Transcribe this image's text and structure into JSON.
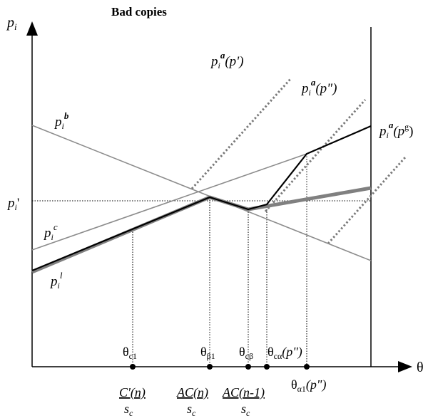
{
  "title": "Bad copies",
  "y_axis": {
    "base": "p",
    "sub": "i"
  },
  "x_axis": {
    "label": "θ"
  },
  "curve_labels": {
    "pa_prime": {
      "base": "p",
      "sub": "i",
      "sup": "a",
      "arg": "(p')"
    },
    "pa_double": {
      "base": "p",
      "sub": "i",
      "sup": "a",
      "arg": "(p\")"
    },
    "pa_g": {
      "base": "p",
      "sub": "i",
      "sup": "a",
      "arg_open": "(p",
      "arg_sup": "g",
      "arg_close": ")"
    },
    "pb": {
      "base": "p",
      "sub": "i",
      "sup": "b"
    },
    "pc": {
      "base": "p",
      "sub": "i",
      "sup": "c"
    },
    "pl": {
      "base": "p",
      "sub": "i",
      "sup": "l"
    },
    "p_prime": {
      "base": "p",
      "sub": "i",
      "prime": "'"
    }
  },
  "x_markers": [
    {
      "name": "theta-c1",
      "base": "θ",
      "sub": "c1"
    },
    {
      "name": "theta-beta1",
      "base": "θ",
      "sub": "β1"
    },
    {
      "name": "theta-cbeta",
      "base": "θ",
      "sub": "cβ"
    },
    {
      "name": "theta-calpha",
      "base": "θ",
      "sub": "cα",
      "arg": "(p\")"
    },
    {
      "name": "theta-alpha1",
      "base": "θ",
      "sub": "α1",
      "arg": "(p\")"
    }
  ],
  "fractions": [
    {
      "name": "c-prime-n",
      "num": "C'(n)",
      "den_base": "s",
      "den_sub": "c"
    },
    {
      "name": "ac-n",
      "num": "AC(n)",
      "den_base": "s",
      "den_sub": "c"
    },
    {
      "name": "ac-n-minus-1",
      "num": "AC(n-1)",
      "den_base": "s",
      "den_sub": "c"
    }
  ],
  "colors": {
    "axis": "#000000",
    "thin_gray": "#8c8c8c",
    "thick_gray": "#808080",
    "dotted": "#7a7a7a",
    "black_path": "#000000"
  }
}
